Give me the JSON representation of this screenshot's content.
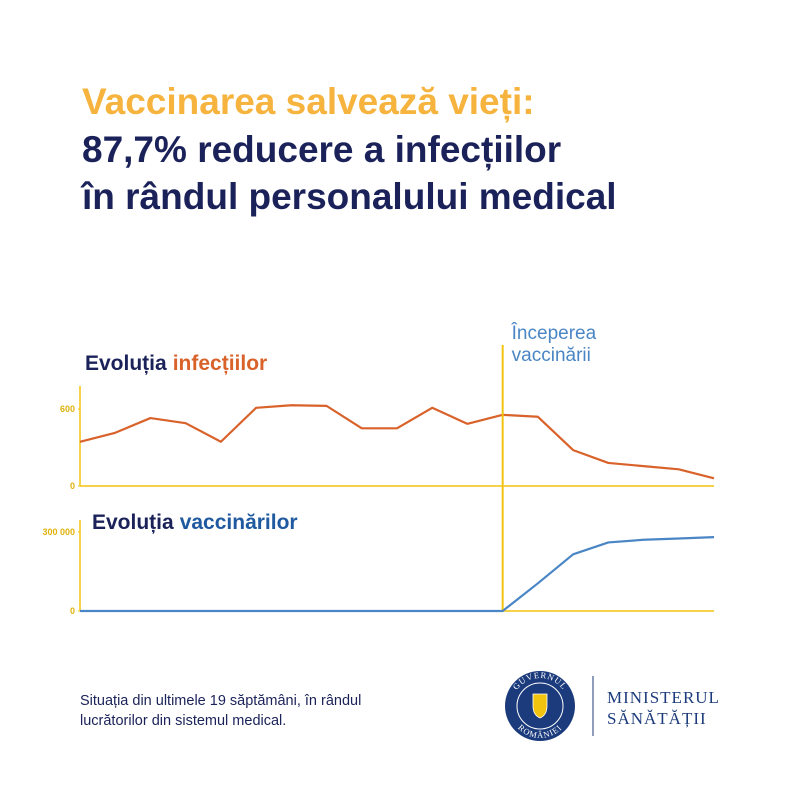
{
  "header": {
    "lines": [
      "Vaccinarea salvează vieți:",
      "87,7% reducere a infecțiilor",
      "în rândul personalului medical"
    ]
  },
  "chart_data": [
    {
      "type": "line",
      "title_parts": [
        {
          "text": "Evoluția",
          "color": "#1a2259"
        },
        {
          "text": "infecțiilor",
          "color": "#d9622b"
        }
      ],
      "categories": [
        null,
        null,
        null,
        null,
        null,
        null,
        null,
        null,
        null,
        null,
        null,
        null,
        null,
        null,
        null,
        null,
        null,
        null,
        null
      ],
      "series": [
        {
          "color": "#d9622b",
          "values": [
            345,
            415,
            530,
            490,
            345,
            610,
            630,
            625,
            450,
            450,
            610,
            485,
            555,
            540,
            280,
            180,
            155,
            130,
            60
          ]
        }
      ],
      "ylim": [
        0,
        780
      ],
      "yticks": [
        0,
        600
      ],
      "marker": {
        "at": 12,
        "color": "#f2c40f",
        "label": [
          "Începerea",
          "vaccinării"
        ],
        "label_color": "#4a86c5"
      }
    },
    {
      "type": "line",
      "title_parts": [
        {
          "text": "Evoluția",
          "color": "#1a2259"
        },
        {
          "text": "vaccinărilor",
          "color": "#1f5aa0"
        }
      ],
      "categories": [
        null,
        null,
        null,
        null,
        null,
        null,
        null,
        null,
        null,
        null,
        null,
        null,
        null,
        null,
        null,
        null,
        null,
        null,
        null
      ],
      "series": [
        {
          "color": "#4a86c5",
          "values": [
            0,
            0,
            0,
            0,
            0,
            0,
            0,
            0,
            0,
            0,
            0,
            0,
            0,
            105000,
            215000,
            260000,
            270000,
            275000,
            280000
          ]
        }
      ],
      "ylim": [
        0,
        345000
      ],
      "yticks": [
        0,
        {
          "value": 300000,
          "label": "300 000"
        }
      ]
    }
  ],
  "footer": {
    "note": [
      "Situația din ultimele 19 săptămâni, în rândul",
      "lucrătorilor din sistemul medical."
    ],
    "logo": {
      "top": "GUVERNUL",
      "bottom": "ROMÂNIEI"
    },
    "ministry": [
      "MINISTERUL",
      "SĂNĂTĂȚII"
    ]
  }
}
